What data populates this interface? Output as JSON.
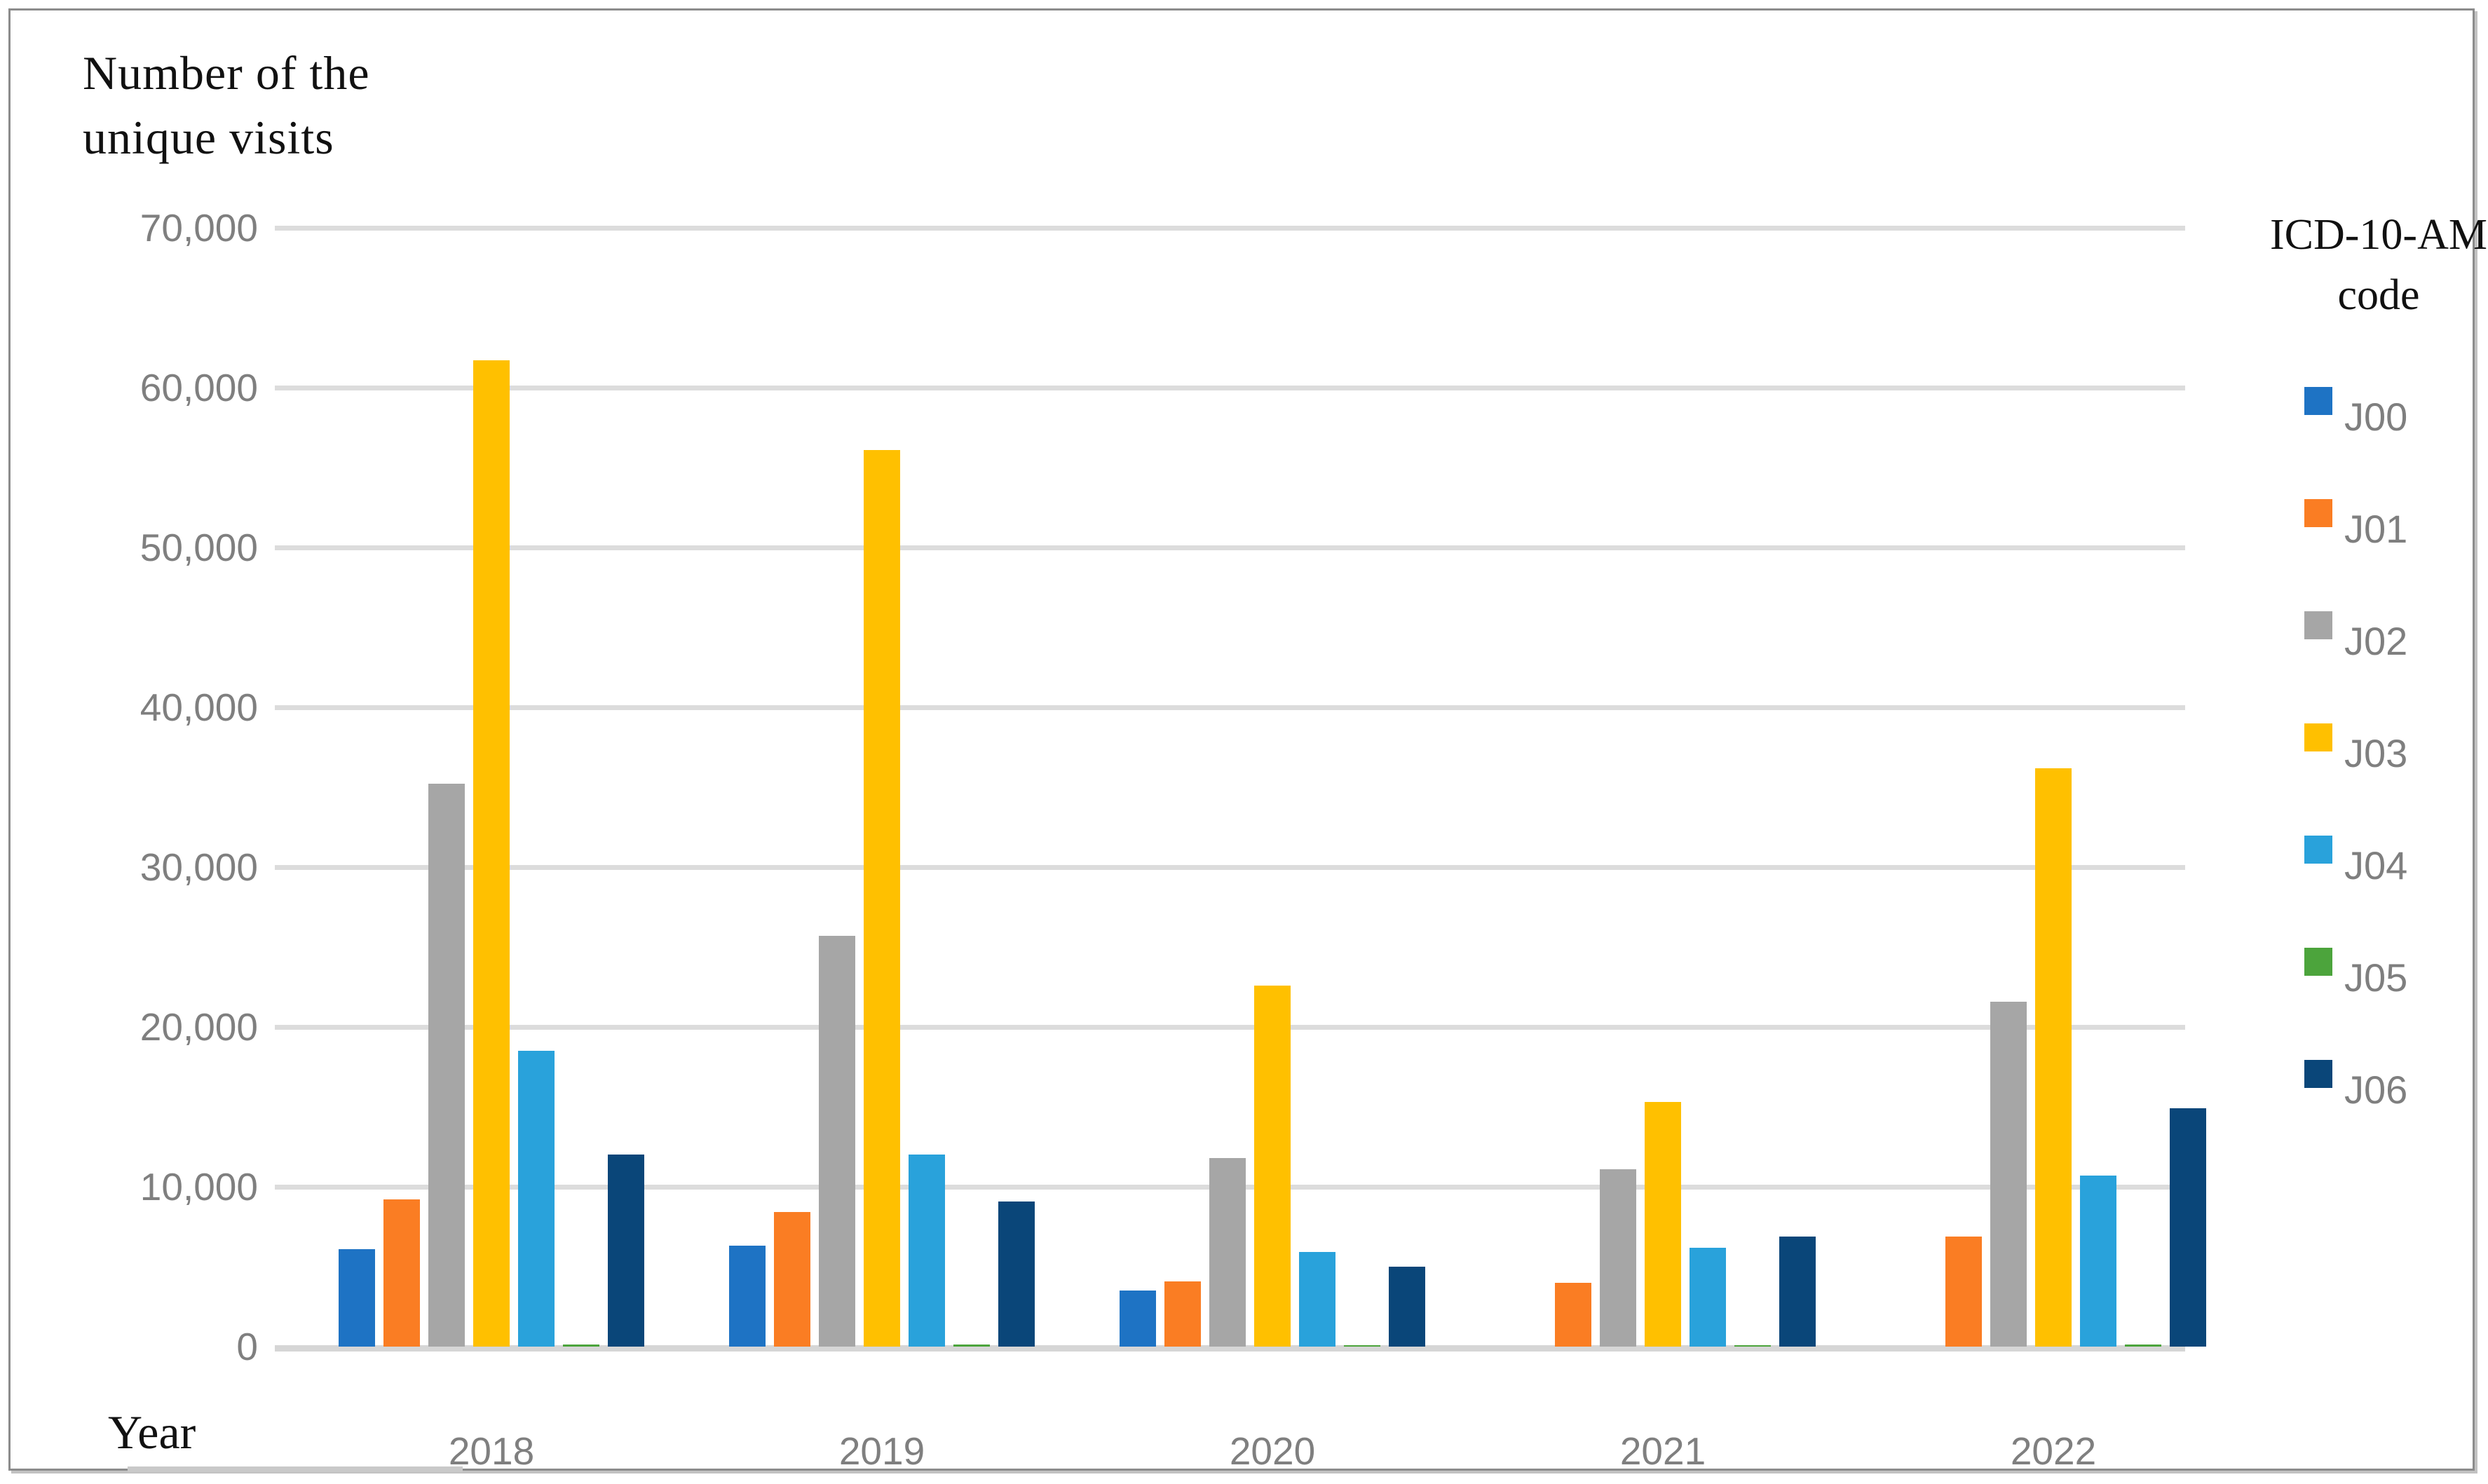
{
  "figure": {
    "y_axis_title_lines": [
      "Number of the",
      "unique visits"
    ],
    "x_axis_title": "Year",
    "legend_title_lines": [
      "ICD-10-AM",
      "code"
    ]
  },
  "chart_data": {
    "type": "bar",
    "title": "Number of the unique visits",
    "xlabel": "Year",
    "ylabel": "Number of the unique visits",
    "legend_title": "ICD-10-AM code",
    "legend_position": "right",
    "grid": "horizontal",
    "ylim": [
      0,
      70000
    ],
    "yticks": [
      {
        "value": 0,
        "label": "0"
      },
      {
        "value": 10000,
        "label": "10,000"
      },
      {
        "value": 20000,
        "label": "20,000"
      },
      {
        "value": 30000,
        "label": "30,000"
      },
      {
        "value": 40000,
        "label": "40,000"
      },
      {
        "value": 50000,
        "label": "50,000"
      },
      {
        "value": 60000,
        "label": "60,000"
      },
      {
        "value": 70000,
        "label": "70,000"
      }
    ],
    "categories": [
      "2018",
      "2019",
      "2020",
      "2021",
      "2022"
    ],
    "series": [
      {
        "name": "J00",
        "color": "#1e73c4",
        "values": [
          6100,
          6300,
          3500,
          0,
          0
        ]
      },
      {
        "name": "J01",
        "color": "#fa7d23",
        "values": [
          9200,
          8400,
          4100,
          4000,
          6900
        ]
      },
      {
        "name": "J02",
        "color": "#a6a6a6",
        "values": [
          35200,
          25700,
          11800,
          11100,
          21600
        ]
      },
      {
        "name": "J03",
        "color": "#ffc000",
        "values": [
          61700,
          56100,
          22600,
          15300,
          36200
        ]
      },
      {
        "name": "J04",
        "color": "#29a2db",
        "values": [
          18500,
          12000,
          5900,
          6200,
          10700
        ]
      },
      {
        "name": "J05",
        "color": "#4ca43c",
        "values": [
          150,
          120,
          100,
          80,
          120
        ]
      },
      {
        "name": "J06",
        "color": "#0a4679",
        "values": [
          12000,
          9100,
          5000,
          6900,
          14900
        ]
      }
    ]
  }
}
